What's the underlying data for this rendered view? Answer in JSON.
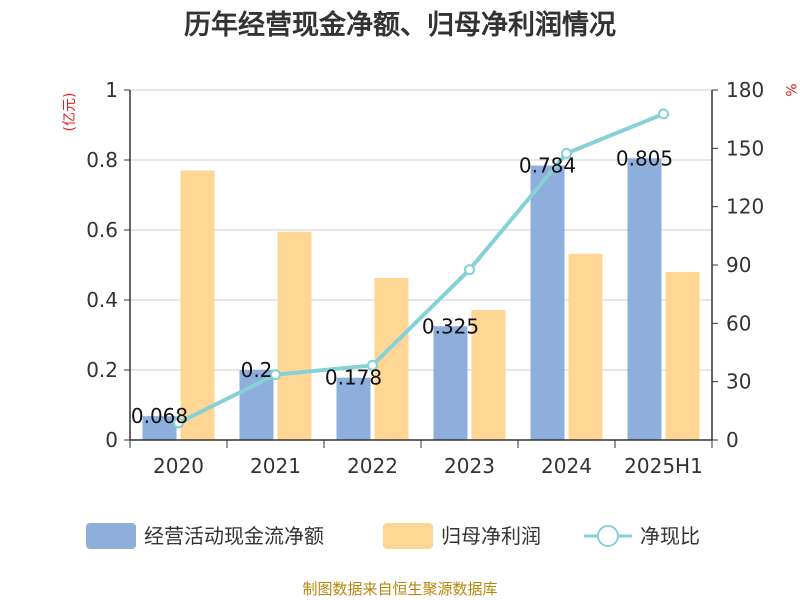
{
  "chart_data": {
    "type": "bar",
    "title": "历年经营现金净额、归母净利润情况",
    "categories": [
      "2020",
      "2021",
      "2022",
      "2023",
      "2024",
      "2025H1"
    ],
    "series": [
      {
        "name": "经营活动现金流净额",
        "kind": "bar",
        "axis": "left",
        "color": "#8eaedb",
        "values": [
          0.068,
          0.2,
          0.178,
          0.325,
          0.784,
          0.805
        ],
        "labels": [
          "0.068",
          "0.2",
          "0.178",
          "0.325",
          "0.784",
          "0.805"
        ]
      },
      {
        "name": "归母净利润",
        "kind": "bar",
        "axis": "left",
        "color": "#ffd694",
        "values": [
          0.77,
          0.595,
          0.463,
          0.371,
          0.532,
          0.48
        ]
      },
      {
        "name": "净现比",
        "kind": "line",
        "axis": "right",
        "color": "#86d1d6",
        "values": [
          8.8,
          33.6,
          38.4,
          87.6,
          147.4,
          167.7
        ]
      }
    ],
    "y_left": {
      "unit": "(亿元)",
      "min": 0,
      "max": 1,
      "ticks": [
        "0",
        "0.2",
        "0.4",
        "0.6",
        "0.8",
        "1"
      ]
    },
    "y_right": {
      "unit": "%",
      "min": 0,
      "max": 180,
      "ticks": [
        "0",
        "30",
        "60",
        "90",
        "120",
        "150",
        "180"
      ]
    },
    "grid": true,
    "legend_position": "bottom"
  },
  "footer": {
    "source": "制图数据来自恒生聚源数据库"
  }
}
